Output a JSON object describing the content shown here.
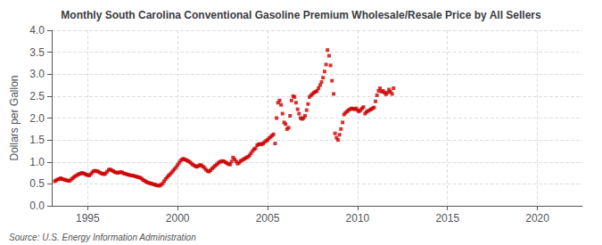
{
  "chart_data": {
    "type": "scatter",
    "title": "Monthly South Carolina Conventional Gasoline Premium Wholesale/Resale Price by All Sellers",
    "ylabel": "Dollars per Gallon",
    "annotations": [
      "Source: U.S. Energy Information Administration"
    ],
    "color": "#cc0000",
    "marker": "square",
    "grid": true,
    "xlim": [
      1993.0,
      2022.5
    ],
    "ylim": [
      0.0,
      4.0
    ],
    "xticks": [
      1995,
      2000,
      2005,
      2010,
      2015,
      2020
    ],
    "yticks": [
      {
        "value": 0.0,
        "label": "0.0"
      },
      0.5,
      {
        "value": 1.0,
        "label": "1.0"
      },
      1.5,
      {
        "value": 2.0,
        "label": "2.0"
      },
      2.5,
      {
        "value": 3.0,
        "label": "3.0"
      },
      3.5,
      {
        "value": 4.0,
        "label": "4.0"
      }
    ],
    "x": [
      1993.17,
      1993.25,
      1993.33,
      1993.42,
      1993.5,
      1993.58,
      1993.67,
      1993.75,
      1993.83,
      1993.92,
      1994.0,
      1994.08,
      1994.17,
      1994.25,
      1994.33,
      1994.42,
      1994.5,
      1994.58,
      1994.67,
      1994.75,
      1994.83,
      1994.92,
      1995.0,
      1995.08,
      1995.17,
      1995.25,
      1995.33,
      1995.42,
      1995.5,
      1995.58,
      1995.67,
      1995.75,
      1995.83,
      1995.92,
      1996.0,
      1996.08,
      1996.17,
      1996.25,
      1996.33,
      1996.42,
      1996.5,
      1996.58,
      1996.67,
      1996.75,
      1996.83,
      1996.92,
      1997.0,
      1997.08,
      1997.17,
      1997.25,
      1997.33,
      1997.42,
      1997.5,
      1997.58,
      1997.67,
      1997.75,
      1997.83,
      1997.92,
      1998.0,
      1998.08,
      1998.17,
      1998.25,
      1998.33,
      1998.42,
      1998.5,
      1998.58,
      1998.67,
      1998.75,
      1998.83,
      1998.92,
      1999.0,
      1999.08,
      1999.17,
      1999.25,
      1999.33,
      1999.42,
      1999.5,
      1999.58,
      1999.67,
      1999.75,
      1999.83,
      1999.92,
      2000.0,
      2000.08,
      2000.17,
      2000.25,
      2000.33,
      2000.42,
      2000.5,
      2000.58,
      2000.67,
      2000.75,
      2000.83,
      2000.92,
      2001.0,
      2001.08,
      2001.17,
      2001.25,
      2001.33,
      2001.42,
      2001.5,
      2001.58,
      2001.67,
      2001.75,
      2001.83,
      2001.92,
      2002.0,
      2002.08,
      2002.17,
      2002.25,
      2002.33,
      2002.42,
      2002.5,
      2002.58,
      2002.67,
      2002.75,
      2002.83,
      2002.92,
      2003.0,
      2003.08,
      2003.17,
      2003.25,
      2003.33,
      2003.42,
      2003.5,
      2003.58,
      2003.67,
      2003.75,
      2003.83,
      2003.92,
      2004.0,
      2004.08,
      2004.17,
      2004.25,
      2004.33,
      2004.42,
      2004.5,
      2004.58,
      2004.67,
      2004.75,
      2004.83,
      2004.92,
      2005.0,
      2005.08,
      2005.17,
      2005.25,
      2005.33,
      2005.42,
      2005.5,
      2005.58,
      2005.67,
      2005.75,
      2005.83,
      2005.92,
      2006.0,
      2006.08,
      2006.17,
      2006.25,
      2006.33,
      2006.42,
      2006.5,
      2006.58,
      2006.67,
      2006.75,
      2006.83,
      2006.92,
      2007.0,
      2007.08,
      2007.17,
      2007.25,
      2007.33,
      2007.42,
      2007.5,
      2007.58,
      2007.67,
      2007.75,
      2007.83,
      2007.92,
      2008.0,
      2008.08,
      2008.17,
      2008.25,
      2008.33,
      2008.42,
      2008.5,
      2008.58,
      2008.67,
      2008.75,
      2008.83,
      2008.92,
      2009.0,
      2009.08,
      2009.17,
      2009.25,
      2009.33,
      2009.42,
      2009.5,
      2009.58,
      2009.67,
      2009.75,
      2009.83,
      2009.92,
      2010.0,
      2010.08,
      2010.17,
      2010.25,
      2010.33,
      2010.42,
      2010.5,
      2010.58,
      2010.67,
      2010.75,
      2010.83,
      2010.92,
      2011.0,
      2011.08,
      2011.17,
      2011.25,
      2011.33,
      2011.42,
      2011.5,
      2011.58,
      2011.67,
      2011.75,
      2011.83,
      2011.92,
      2012.0
    ],
    "values": [
      0.56,
      0.58,
      0.6,
      0.61,
      0.63,
      0.61,
      0.6,
      0.59,
      0.58,
      0.57,
      0.57,
      0.6,
      0.63,
      0.66,
      0.68,
      0.7,
      0.72,
      0.73,
      0.75,
      0.74,
      0.73,
      0.71,
      0.7,
      0.69,
      0.72,
      0.76,
      0.79,
      0.8,
      0.79,
      0.78,
      0.76,
      0.74,
      0.73,
      0.72,
      0.74,
      0.78,
      0.82,
      0.83,
      0.81,
      0.79,
      0.77,
      0.76,
      0.75,
      0.76,
      0.77,
      0.76,
      0.74,
      0.73,
      0.72,
      0.71,
      0.7,
      0.69,
      0.69,
      0.68,
      0.67,
      0.66,
      0.65,
      0.64,
      0.62,
      0.59,
      0.57,
      0.55,
      0.53,
      0.52,
      0.51,
      0.5,
      0.49,
      0.48,
      0.47,
      0.46,
      0.46,
      0.48,
      0.51,
      0.56,
      0.61,
      0.65,
      0.69,
      0.72,
      0.76,
      0.8,
      0.84,
      0.88,
      0.93,
      0.98,
      1.03,
      1.06,
      1.07,
      1.05,
      1.04,
      1.02,
      1.0,
      0.97,
      0.94,
      0.92,
      0.9,
      0.89,
      0.91,
      0.93,
      0.92,
      0.89,
      0.86,
      0.82,
      0.79,
      0.78,
      0.81,
      0.85,
      0.88,
      0.91,
      0.94,
      0.97,
      1.0,
      1.01,
      1.02,
      1.01,
      0.99,
      0.97,
      0.95,
      0.94,
      1.01,
      1.1,
      1.06,
      1.01,
      0.96,
      0.98,
      1.02,
      1.04,
      1.06,
      1.08,
      1.1,
      1.12,
      1.15,
      1.2,
      1.25,
      1.29,
      1.31,
      1.38,
      1.4,
      1.41,
      1.4,
      1.42,
      1.45,
      1.48,
      1.5,
      1.54,
      1.57,
      1.6,
      1.63,
      1.42,
      2.0,
      2.35,
      2.4,
      2.3,
      2.1,
      1.9,
      1.86,
      1.75,
      1.78,
      2.05,
      2.4,
      2.5,
      2.48,
      2.35,
      2.2,
      2.1,
      2.0,
      1.98,
      2.0,
      2.05,
      2.18,
      2.32,
      2.48,
      2.52,
      2.55,
      2.58,
      2.6,
      2.62,
      2.68,
      2.75,
      2.82,
      2.92,
      3.06,
      3.22,
      3.55,
      3.42,
      3.2,
      2.85,
      2.55,
      1.65,
      1.55,
      1.5,
      1.62,
      1.75,
      1.9,
      2.08,
      2.12,
      2.15,
      2.18,
      2.2,
      2.22,
      2.21,
      2.2,
      2.22,
      2.18,
      2.15,
      2.18,
      2.22,
      2.25,
      2.1,
      2.14,
      2.16,
      2.18,
      2.2,
      2.22,
      2.24,
      2.38,
      2.52,
      2.62,
      2.68,
      2.6,
      2.62,
      2.58,
      2.54,
      2.58,
      2.65,
      2.6,
      2.55,
      2.68
    ]
  }
}
